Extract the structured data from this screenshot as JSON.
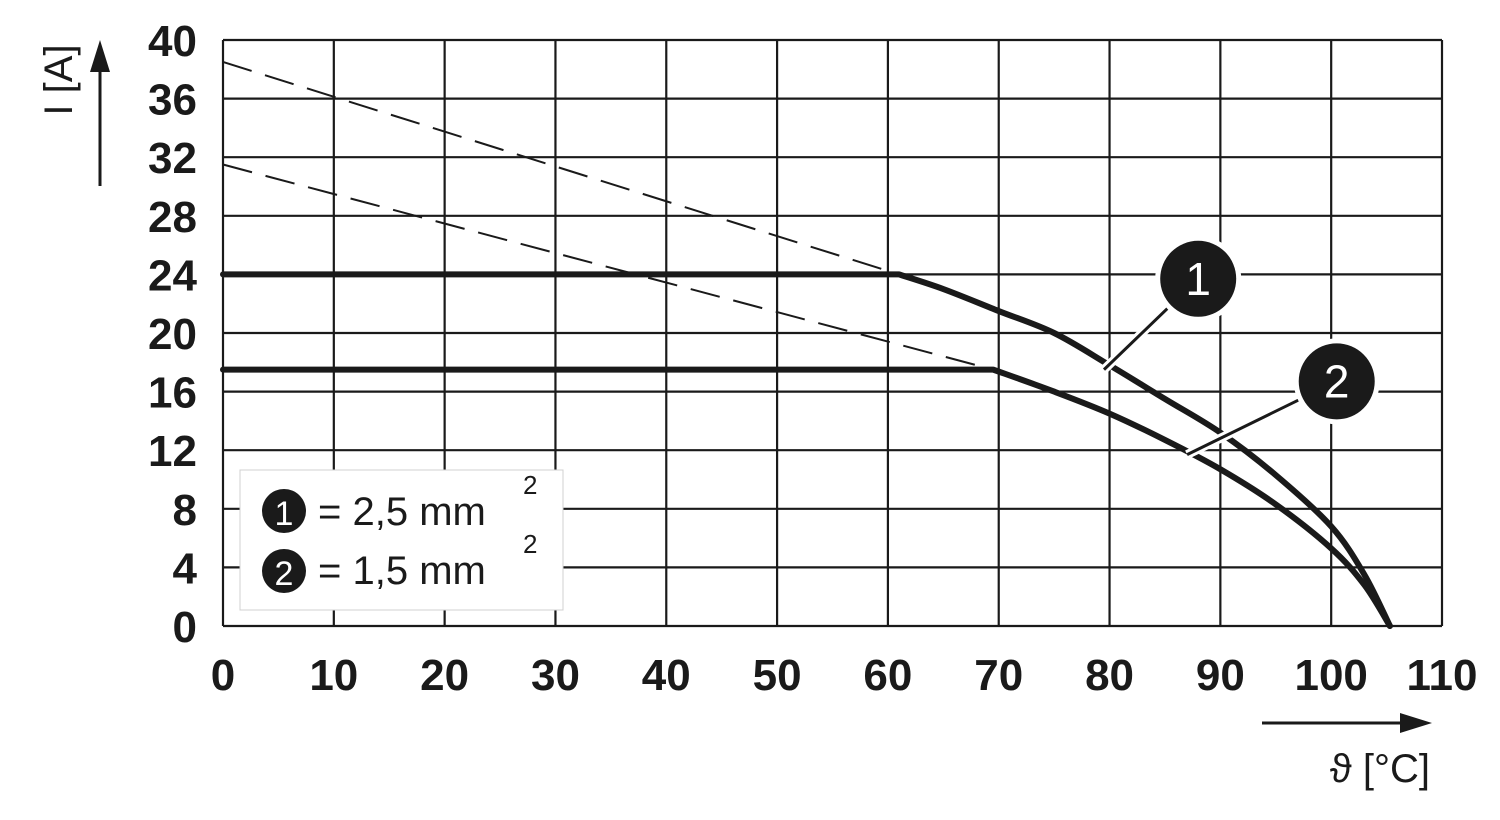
{
  "chart_data": {
    "type": "line",
    "xlabel": "ϑ [°C]",
    "ylabel": "I [A]",
    "xlim": [
      0,
      110
    ],
    "ylim": [
      0,
      40
    ],
    "x_ticks": [
      0,
      10,
      20,
      30,
      40,
      50,
      60,
      70,
      80,
      90,
      100,
      110
    ],
    "y_ticks": [
      0,
      4,
      8,
      12,
      16,
      20,
      24,
      28,
      32,
      36,
      40
    ],
    "grid": true,
    "legend_position": "bottom-left",
    "legend": [
      {
        "marker": "1",
        "text": "= 2,5 mm",
        "sup": "2"
      },
      {
        "marker": "2",
        "text": "= 1,5 mm",
        "sup": "2"
      }
    ],
    "series": [
      {
        "marker": "1",
        "style": "solid",
        "points": [
          [
            0,
            24
          ],
          [
            61,
            24
          ],
          [
            65,
            23
          ],
          [
            70,
            21.5
          ],
          [
            75,
            20
          ],
          [
            80,
            17.8
          ],
          [
            85,
            15.5
          ],
          [
            90,
            13.2
          ],
          [
            95,
            10.3
          ],
          [
            100,
            6.8
          ],
          [
            103,
            3.5
          ],
          [
            105.3,
            0
          ]
        ]
      },
      {
        "marker": "2",
        "style": "solid",
        "points": [
          [
            0,
            17.5
          ],
          [
            69.5,
            17.5
          ],
          [
            75,
            16
          ],
          [
            80,
            14.5
          ],
          [
            85,
            12.7
          ],
          [
            90,
            10.7
          ],
          [
            95,
            8.3
          ],
          [
            100,
            5.3
          ],
          [
            103,
            2.8
          ],
          [
            105.3,
            0
          ]
        ]
      },
      {
        "marker": "1",
        "style": "dashed",
        "points": [
          [
            0,
            38.5
          ],
          [
            61,
            24
          ]
        ]
      },
      {
        "marker": "2",
        "style": "dashed",
        "points": [
          [
            0,
            31.5
          ],
          [
            69.5,
            17.5
          ]
        ]
      }
    ],
    "callouts": [
      {
        "label": "1",
        "anchor": [
          79.5,
          17.5
        ],
        "bubble": [
          88,
          23.7
        ]
      },
      {
        "label": "2",
        "anchor": [
          87,
          11.7
        ],
        "bubble": [
          100.5,
          16.7
        ]
      }
    ],
    "colors": {
      "line": "#1a1a1a",
      "grid": "#1a1a1a",
      "badge": "#1a1a1a"
    }
  }
}
